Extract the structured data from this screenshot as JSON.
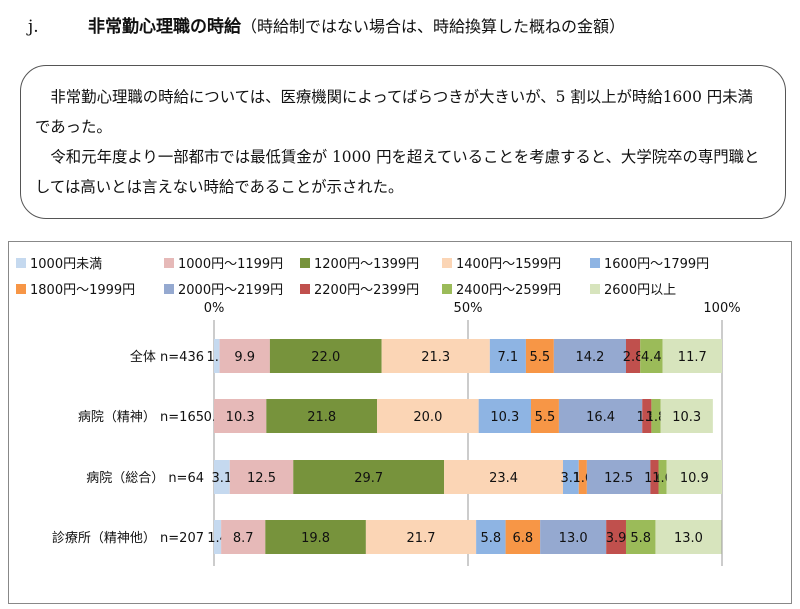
{
  "section": {
    "number": "j.",
    "title": "非常勤心理職の時給",
    "note": "（時給制ではない場合は、時給換算した概ねの金額）"
  },
  "summary": {
    "paragraphs": [
      "非常勤心理職の時給については、医療機関によってばらつきが大きいが、5 割以上が時給1600 円未満であった。",
      "令和元年度より一部都市では最低賃金が 1000 円を超えていることを考慮すると、大学院卒の専門職としては高いとは言えない時給であることが示された。"
    ]
  },
  "chart_data": {
    "type": "bar",
    "orientation": "horizontal",
    "stacked": "percent",
    "categories": [
      "全体 n=436",
      "病院（精神） n=165",
      "病院（総合） n=64",
      "診療所（精神他） n=207"
    ],
    "axis_ticks": [
      "0%",
      "50%",
      "100%"
    ],
    "xlim": [
      0,
      100
    ],
    "grid": true,
    "legend_position": "top",
    "series": [
      {
        "name": "1000円未満",
        "color": "#c5d9ef",
        "values": [
          1.1,
          0.0,
          3.1,
          1.4
        ]
      },
      {
        "name": "1000円～1199円",
        "color": "#e6b9b8",
        "values": [
          9.9,
          10.3,
          12.5,
          8.7
        ]
      },
      {
        "name": "1200円～1399円",
        "color": "#77933c",
        "values": [
          22.0,
          21.8,
          29.7,
          19.8
        ]
      },
      {
        "name": "1400円～1599円",
        "color": "#fbd5b5",
        "values": [
          21.3,
          20.0,
          23.4,
          21.7
        ]
      },
      {
        "name": "1600円～1799円",
        "color": "#8eb4e3",
        "values": [
          7.1,
          10.3,
          3.1,
          5.8
        ]
      },
      {
        "name": "1800円～1999円",
        "color": "#f79646",
        "values": [
          5.5,
          5.5,
          1.6,
          6.8
        ]
      },
      {
        "name": "2000円～2199円",
        "color": "#95a9d0",
        "values": [
          14.2,
          16.4,
          12.5,
          13.0
        ]
      },
      {
        "name": "2200円～2399円",
        "color": "#c0504d",
        "values": [
          2.8,
          1.8,
          1.6,
          3.9
        ]
      },
      {
        "name": "2400円～2599円",
        "color": "#9bbb59",
        "values": [
          4.4,
          1.8,
          1.6,
          5.8
        ]
      },
      {
        "name": "2600円以上",
        "color": "#d7e4bd",
        "values": [
          11.7,
          10.3,
          10.9,
          13.0
        ]
      }
    ]
  }
}
